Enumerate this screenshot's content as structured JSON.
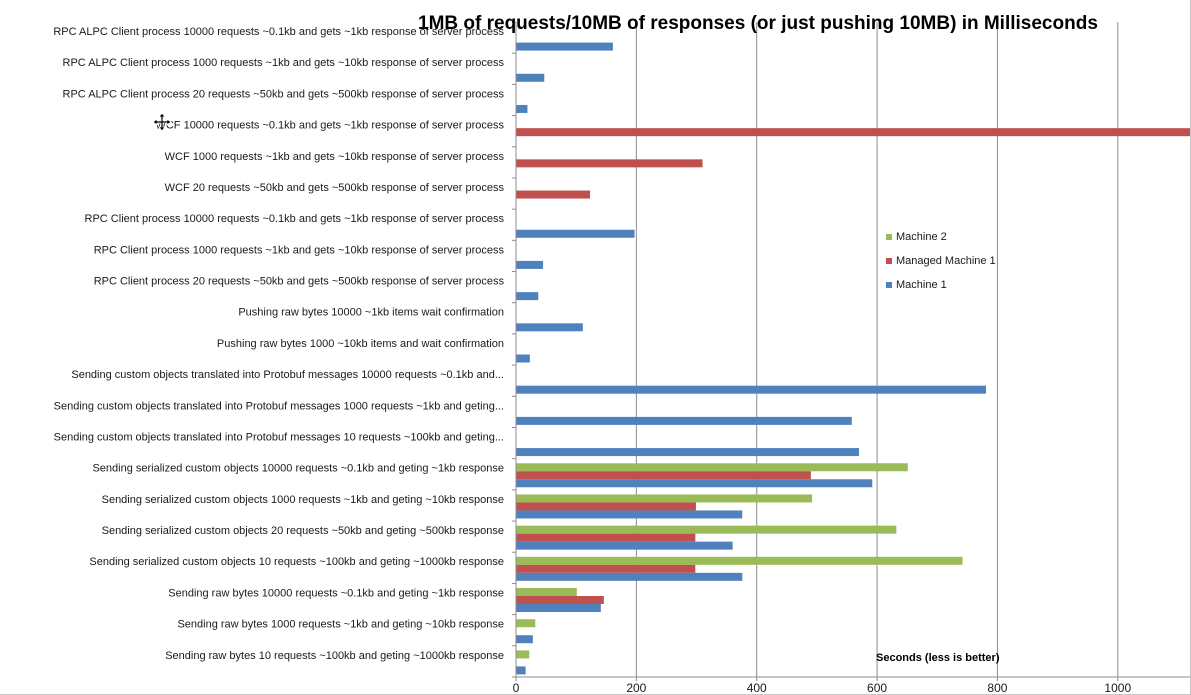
{
  "chart_data": {
    "type": "bar",
    "orientation": "horizontal",
    "title": "1MB of requests/10MB of responses (or just pushing 10MB) in Milliseconds",
    "xlabel": "Seconds (less is better)",
    "ylabel": "",
    "xlim": [
      0,
      1120
    ],
    "x_ticks": [
      0,
      200,
      400,
      600,
      800,
      1000
    ],
    "grid": "vertical",
    "legend_position": "right",
    "colors": {
      "Machine 1": "#4f81bd",
      "Managed Machine 1": "#c0504d",
      "Machine 2": "#9bbb59"
    },
    "categories": [
      "RPC ALPC Client process 10000 requests ~0.1kb and gets ~1kb response  of server process",
      "RPC ALPC Client process 1000 requests ~1kb and gets ~10kb response of server process",
      "RPC ALPC Client process 20 requests ~50kb and gets ~500kb response of server process",
      "WCF 10000 requests ~0.1kb and gets ~1kb response  of server process",
      "WCF 1000 requests ~1kb and gets ~10kb response of server process",
      "WCF 20 requests ~50kb and gets ~500kb response of server process",
      "RPC Client process 10000 requests ~0.1kb and gets ~1kb response  of server process",
      "RPC Client process 1000 requests ~1kb and gets ~10kb response of server process",
      "RPC Client process 20 requests ~50kb and gets ~500kb response of server process",
      "Pushing raw bytes 10000 ~1kb items  wait confirmation",
      "Pushing raw bytes 1000 ~10kb items and wait confirmation",
      "Sending custom objects translated into Protobuf messages 10000 requests ~0.1kb and...",
      "Sending custom objects translated into Protobuf messages 1000 requests ~1kb and geting...",
      "Sending custom objects translated into Protobuf messages 10 requests ~100kb and geting...",
      "Sending serialized custom objects  10000 requests ~0.1kb and geting ~1kb response",
      "Sending serialized custom objects 1000 requests ~1kb and geting ~10kb response",
      "Sending serialized custom objects 20 requests ~50kb and geting ~500kb response",
      "Sending serialized custom objects 10 requests ~100kb and geting ~1000kb response",
      "Sending raw bytes 10000 requests ~0.1kb and geting ~1kb response",
      "Sending raw bytes 1000 requests ~1kb and geting ~10kb response",
      "Sending raw bytes 10 requests ~100kb and geting ~1000kb response"
    ],
    "series": [
      {
        "name": "Machine 1",
        "values": [
          161,
          47,
          19,
          null,
          null,
          null,
          197,
          45,
          37,
          111,
          23,
          781,
          558,
          570,
          592,
          376,
          360,
          376,
          141,
          28,
          16
        ]
      },
      {
        "name": "Managed Machine 1",
        "values": [
          null,
          null,
          null,
          1120,
          310,
          123,
          null,
          null,
          null,
          null,
          null,
          null,
          null,
          null,
          490,
          299,
          298,
          298,
          146,
          null,
          null
        ]
      },
      {
        "name": "Machine 2",
        "values": [
          null,
          null,
          null,
          null,
          null,
          null,
          null,
          null,
          null,
          null,
          null,
          null,
          null,
          null,
          651,
          492,
          632,
          742,
          101,
          32,
          22
        ]
      }
    ],
    "legend_order": [
      "Machine 2",
      "Managed Machine 1",
      "Machine 1"
    ]
  },
  "cursor": {
    "icon": "move-cursor-icon"
  }
}
